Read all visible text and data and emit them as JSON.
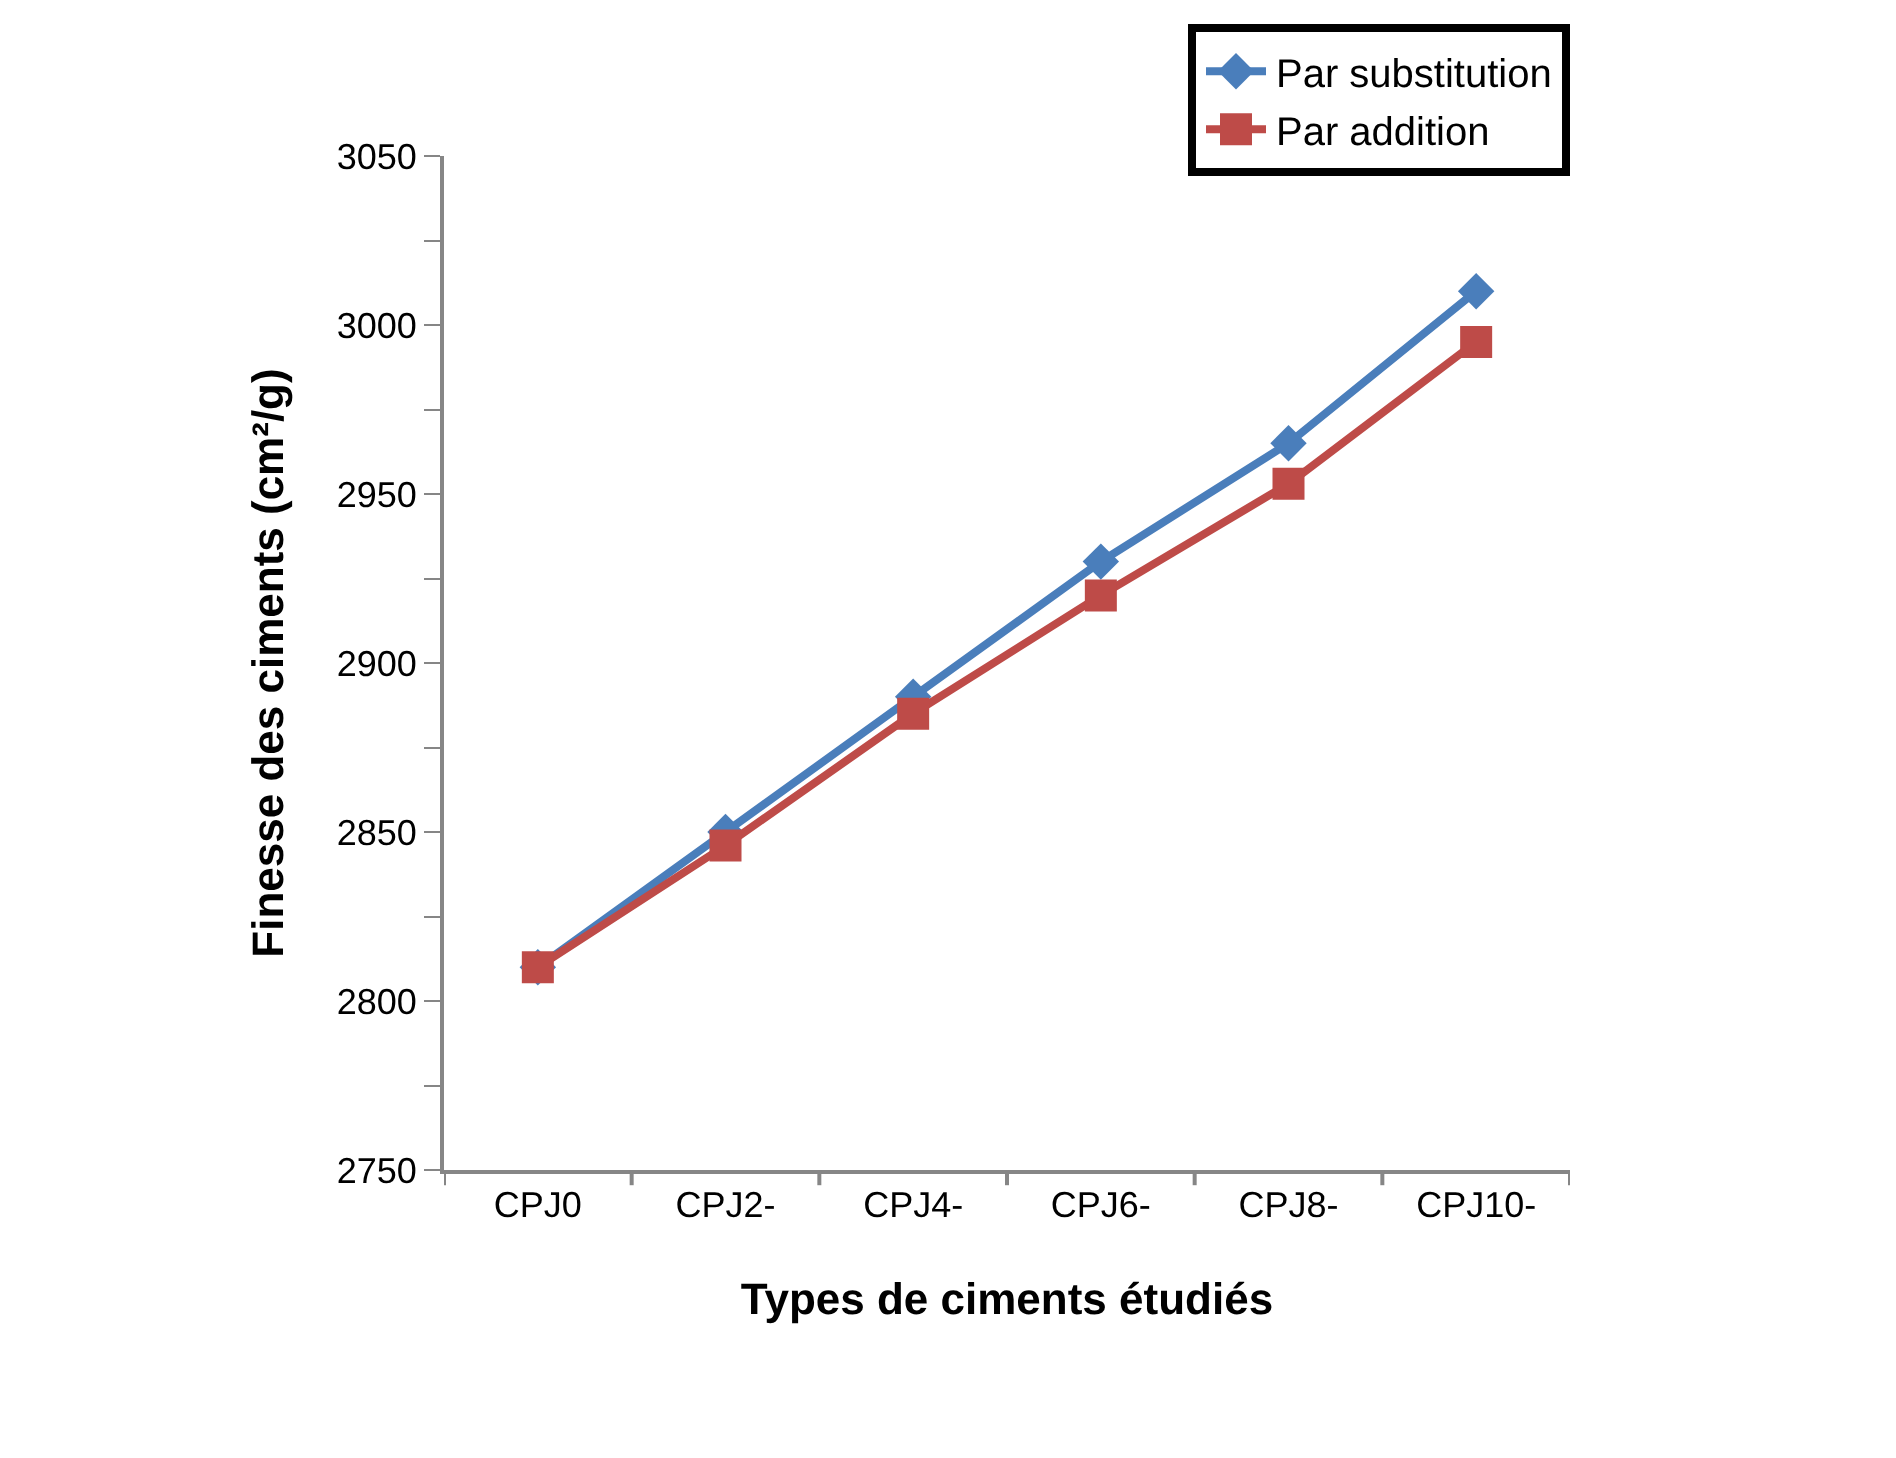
{
  "chart_data": {
    "type": "line",
    "xlabel": "Types de ciments étudiés",
    "ylabel": "Finesse des ciments (cm²/g)",
    "categories": [
      "CPJ0",
      "CPJ2-",
      "CPJ4-",
      "CPJ6-",
      "CPJ8-",
      "CPJ10-"
    ],
    "series": [
      {
        "name": "Par substitution",
        "color": "#4a7ebb",
        "marker": "diamond",
        "values": [
          2810,
          2850,
          2890,
          2930,
          2965,
          3010
        ]
      },
      {
        "name": "Par addition",
        "color": "#be4b48",
        "marker": "square",
        "values": [
          2810,
          2846,
          2885,
          2920,
          2953,
          2995
        ]
      }
    ],
    "ylim": [
      2750,
      3050
    ],
    "yticks": [
      2750,
      {
        "value": 2775,
        "label": null
      },
      2800,
      {
        "value": 2825,
        "label": null
      },
      2850,
      {
        "value": 2875,
        "label": null
      },
      2900,
      {
        "value": 2925,
        "label": null
      },
      2950,
      {
        "value": 2975,
        "label": null
      },
      3000,
      {
        "value": 3025,
        "label": null
      },
      3050
    ],
    "grid": false,
    "legend": "top right",
    "line_style": "solid"
  }
}
